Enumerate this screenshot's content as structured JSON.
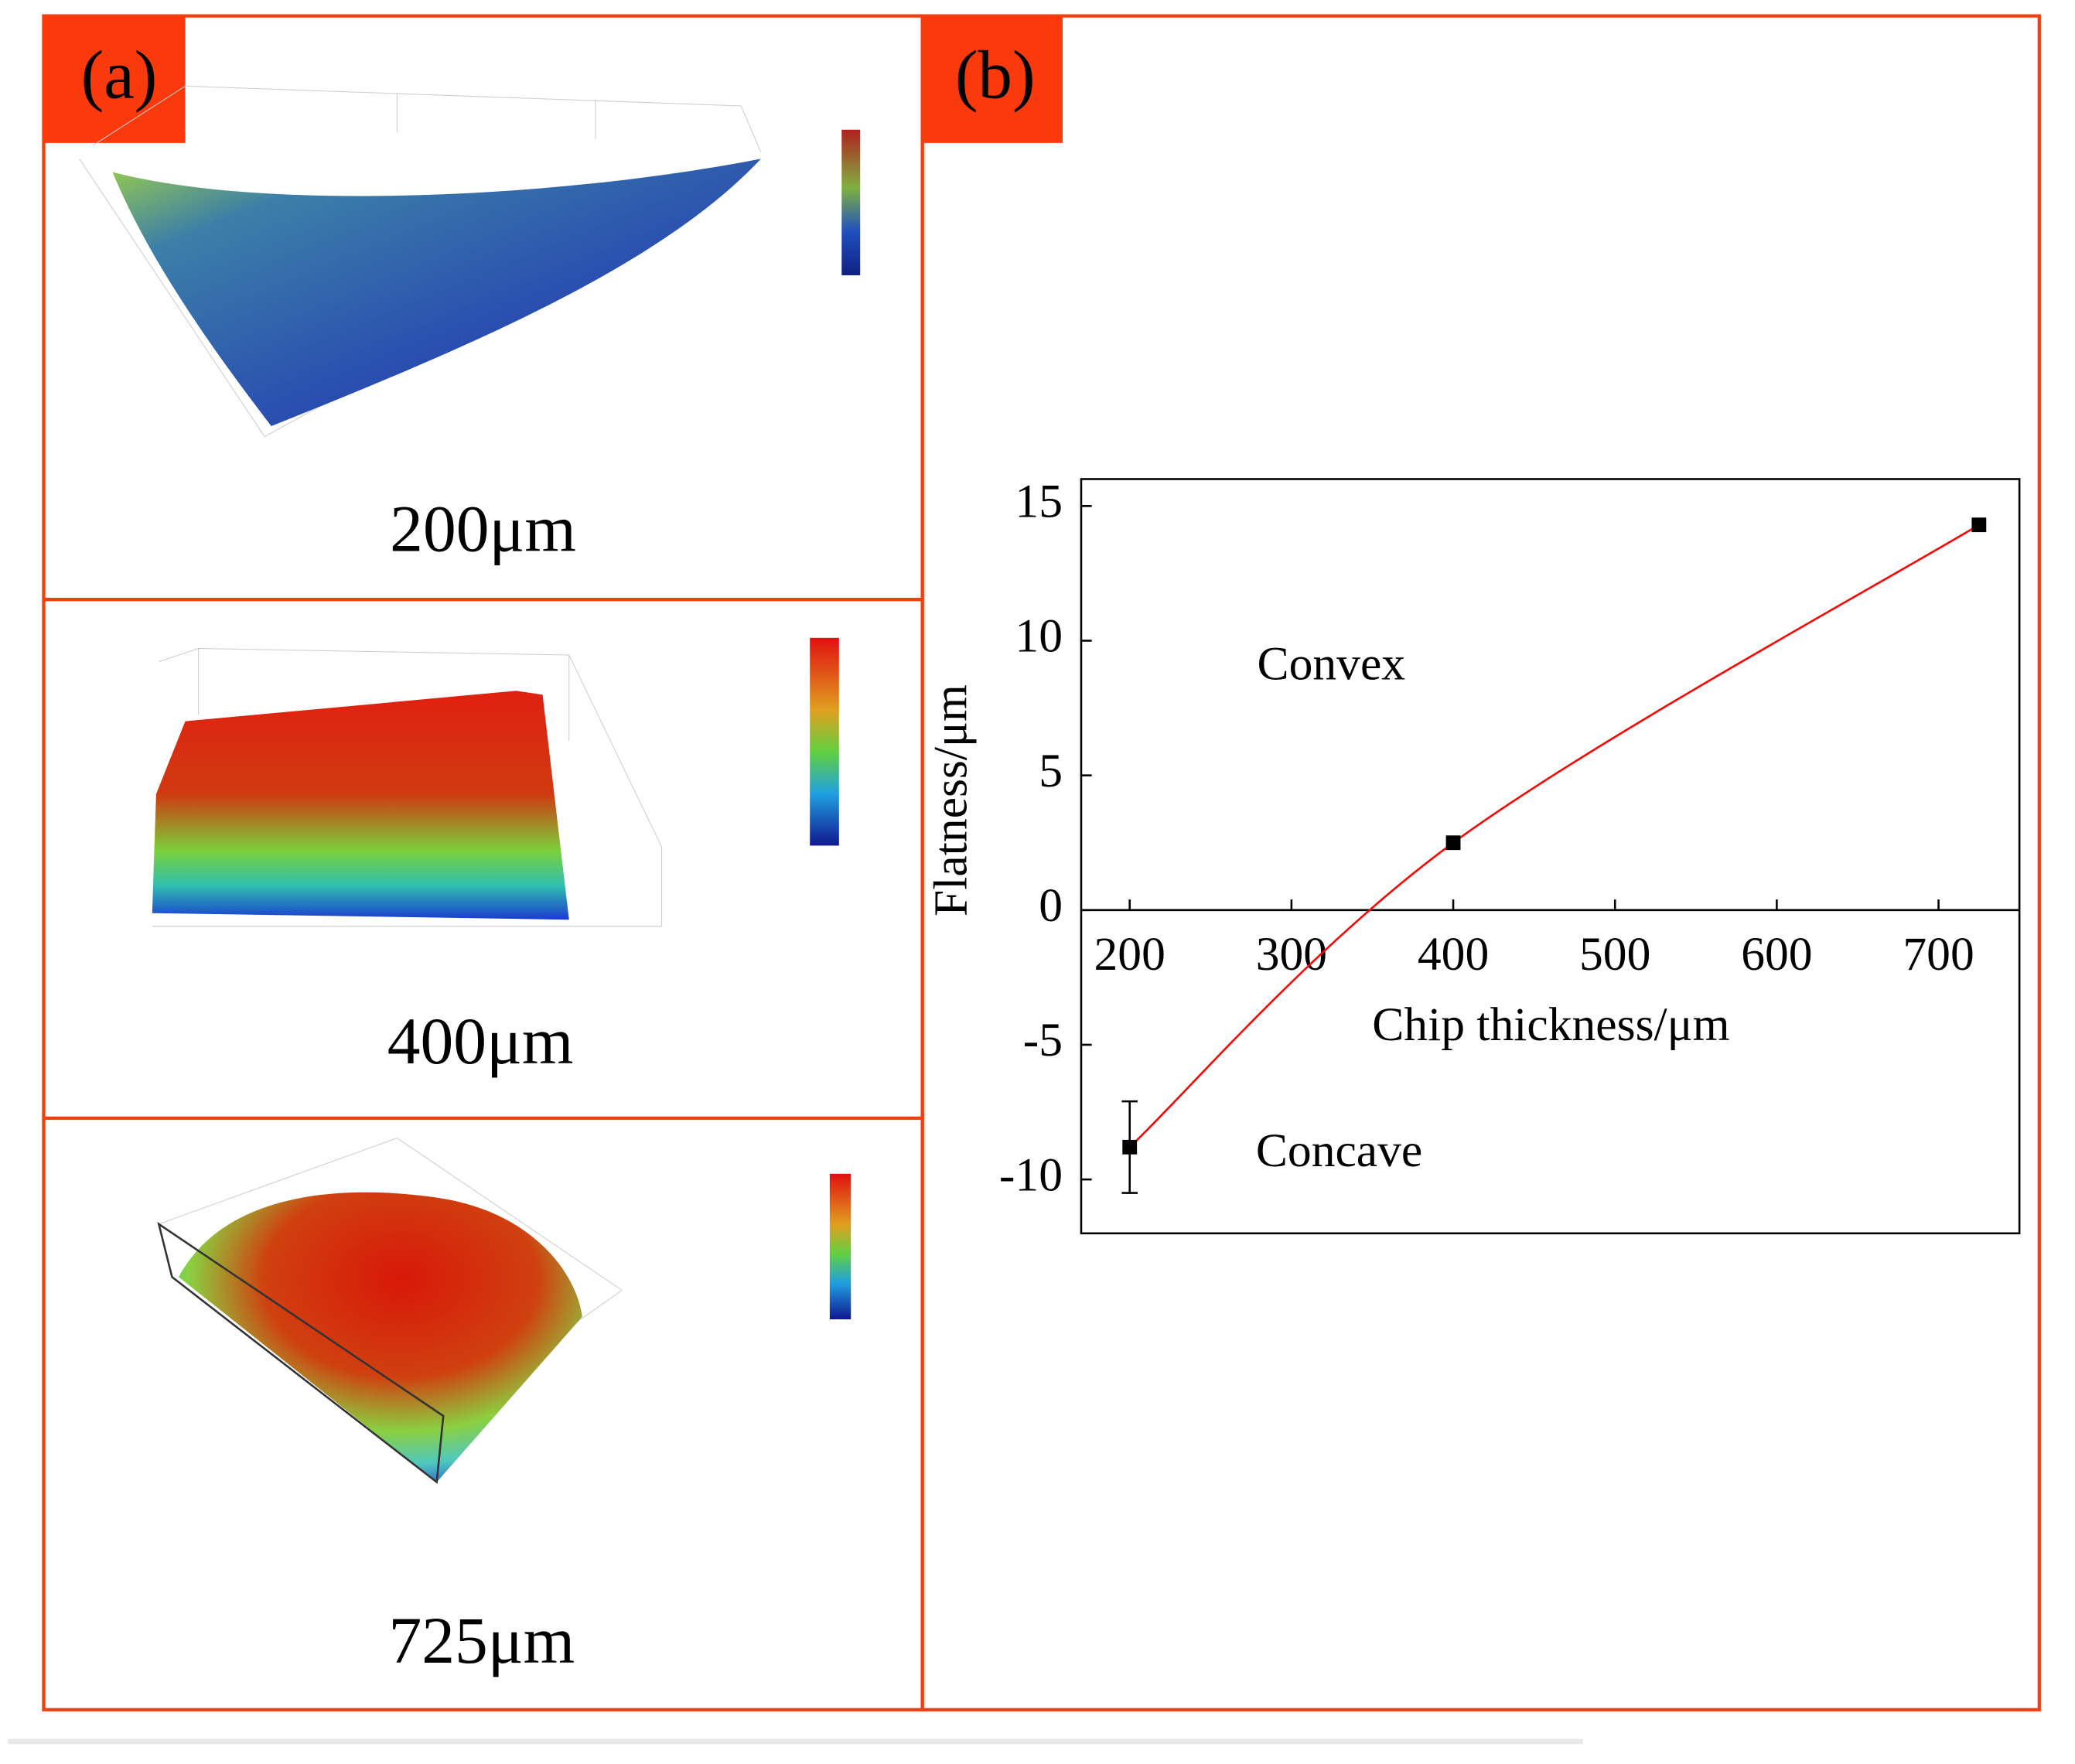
{
  "panel_a": {
    "label": "(a)",
    "captions": [
      "200μm",
      "400μm",
      "725μm"
    ]
  },
  "panel_b": {
    "label": "(b)"
  },
  "chart_data": {
    "type": "scatter",
    "xlabel": "Chip thickness/μm",
    "ylabel": "Flatness/μm",
    "annotations": [
      "Convex",
      "Concave"
    ],
    "series": [
      {
        "x": [
          200,
          400,
          725
        ],
        "values": [
          -8.8,
          2.5,
          14.3
        ],
        "errors": [
          1.7,
          null,
          null
        ],
        "color": "#000000",
        "line_color": "#ff0000"
      }
    ],
    "xlim": [
      170,
      750
    ],
    "ylim": [
      -12,
      16
    ],
    "xticks": [
      200,
      300,
      400,
      500,
      600,
      700
    ],
    "yticks": [
      15,
      10,
      5,
      0,
      -5,
      -10
    ]
  }
}
